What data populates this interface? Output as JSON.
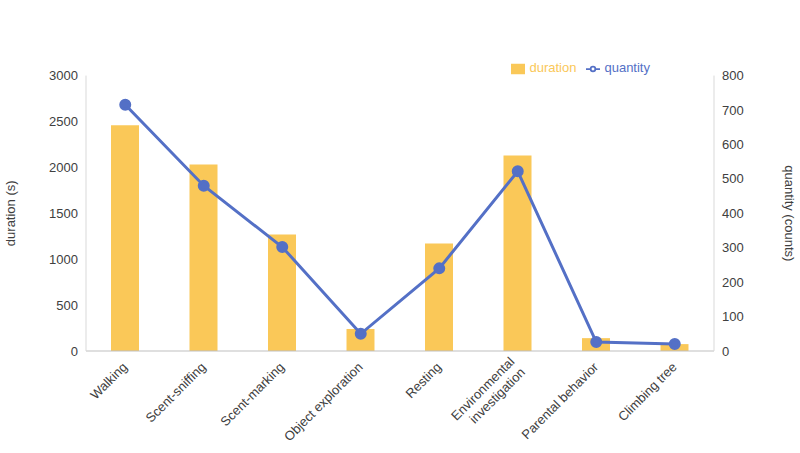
{
  "chart_data": {
    "type": "bar",
    "categories": [
      "Walking",
      "Scent-sniffing",
      "Scent-marking",
      "Object exploration",
      "Resting",
      "Environmental investigation",
      "Parental behavior",
      "Climbing tree"
    ],
    "series": [
      {
        "name": "duration",
        "type": "bar",
        "color": "#FAC858",
        "values": [
          2460,
          2030,
          1270,
          240,
          1170,
          2130,
          140,
          75
        ]
      },
      {
        "name": "quantity",
        "type": "line",
        "axis": "y2",
        "color": "#5470C6",
        "marker": "circle",
        "values": [
          715,
          480,
          302,
          50,
          240,
          522,
          26,
          20
        ]
      }
    ],
    "y_label": "duration (s)",
    "y2_label": "quantity (counts)",
    "ylim": [
      0,
      3000
    ],
    "yticks": [
      0,
      500,
      1000,
      1500,
      2000,
      2500,
      3000
    ],
    "y2lim": [
      0,
      800
    ],
    "y2ticks": [
      0,
      100,
      200,
      300,
      400,
      500,
      600,
      700,
      800
    ],
    "grid": false,
    "legend": "top right"
  }
}
